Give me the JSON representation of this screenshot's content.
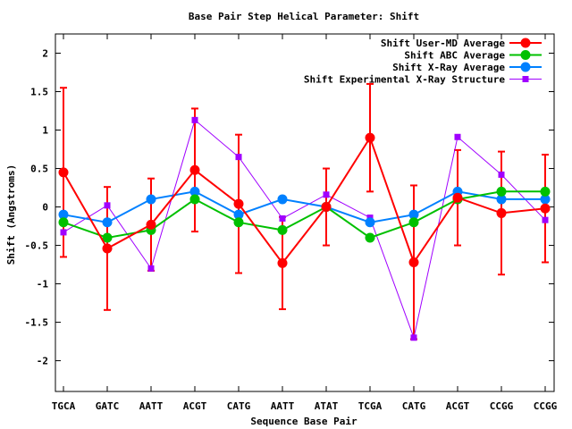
{
  "chart_data": {
    "type": "line",
    "title": "Base Pair Step Helical Parameter: Shift",
    "xlabel": "Sequence Base Pair",
    "ylabel": "Shift (Angstroms)",
    "ylim": [
      -2.4,
      2.25
    ],
    "yticks": [
      -2,
      -1.5,
      -1,
      -0.5,
      0,
      0.5,
      1,
      1.5,
      2
    ],
    "categories": [
      "TGCA",
      "GATC",
      "AATT",
      "ACGT",
      "CATG",
      "AATT",
      "ATAT",
      "TCGA",
      "CATG",
      "ACGT",
      "CCGG",
      "CCGG"
    ],
    "grid": false,
    "legend_position": "top-right",
    "series": [
      {
        "name": "Shift User-MD Average",
        "color": "#ff0000",
        "marker": "circle",
        "values": [
          0.45,
          -0.54,
          -0.23,
          0.48,
          0.04,
          -0.73,
          0.0,
          0.9,
          -0.72,
          0.12,
          -0.08,
          -0.02
        ],
        "error": [
          1.1,
          0.8,
          0.6,
          0.8,
          0.9,
          0.6,
          0.5,
          0.7,
          1.0,
          0.62,
          0.8,
          0.7
        ]
      },
      {
        "name": "Shift ABC Average",
        "color": "#00c000",
        "marker": "circle",
        "values": [
          -0.2,
          -0.4,
          -0.3,
          0.1,
          -0.2,
          -0.3,
          0.0,
          -0.4,
          -0.2,
          0.1,
          0.2,
          0.2
        ]
      },
      {
        "name": "Shift X-Ray Average",
        "color": "#0080ff",
        "marker": "circle",
        "values": [
          -0.1,
          -0.2,
          0.1,
          0.2,
          -0.1,
          0.1,
          0.0,
          -0.2,
          -0.1,
          0.2,
          0.1,
          0.1
        ]
      },
      {
        "name": "Shift Experimental X-Ray Structure",
        "color": "#a000ff",
        "marker": "square",
        "values": [
          -0.33,
          0.02,
          -0.8,
          1.13,
          0.65,
          -0.15,
          0.16,
          -0.14,
          -1.7,
          0.91,
          0.42,
          -0.17
        ]
      }
    ]
  }
}
